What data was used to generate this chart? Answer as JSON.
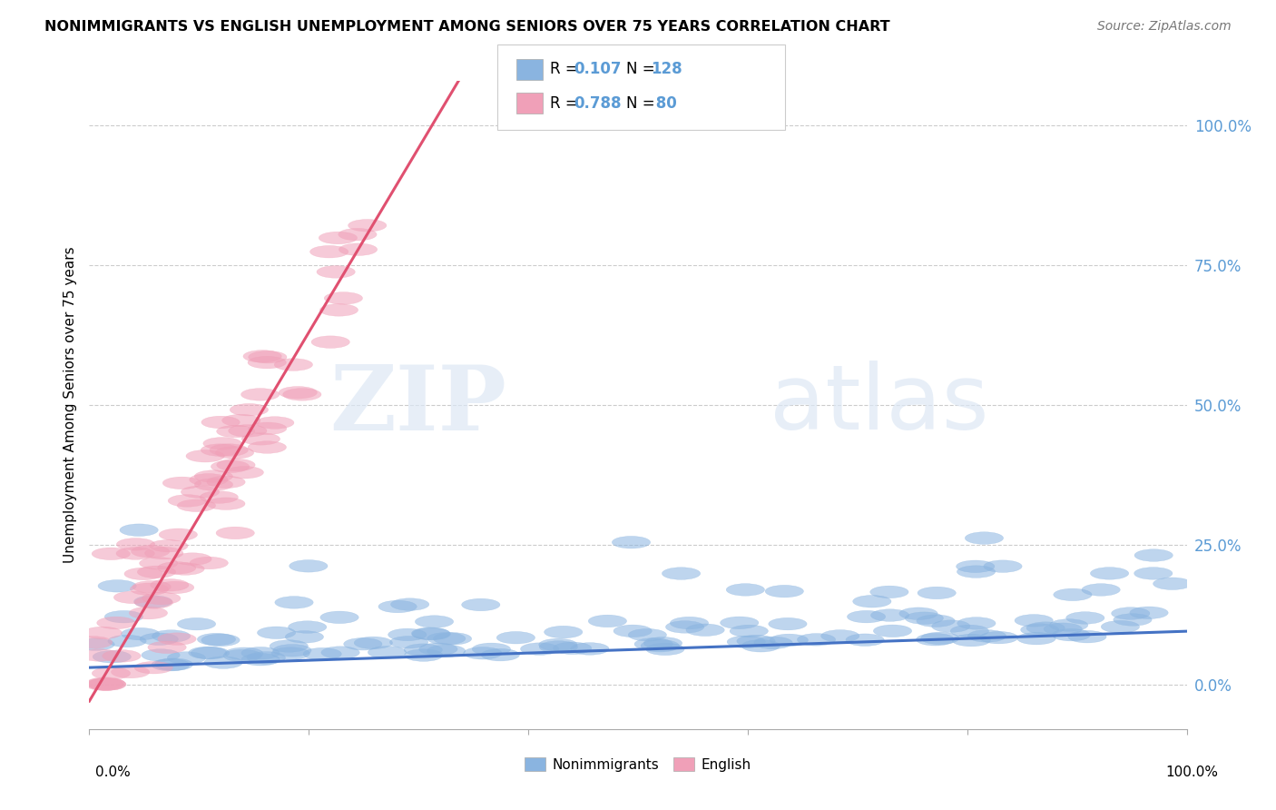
{
  "title": "NONIMMIGRANTS VS ENGLISH UNEMPLOYMENT AMONG SENIORS OVER 75 YEARS CORRELATION CHART",
  "source": "Source: ZipAtlas.com",
  "ylabel": "Unemployment Among Seniors over 75 years",
  "legend_blue_r": "R = 0.107",
  "legend_blue_n": "N = 128",
  "legend_pink_r": "R = 0.788",
  "legend_pink_n": "N =  80",
  "blue_color": "#8ab4e0",
  "pink_color": "#f0a0b8",
  "blue_line_color": "#4472c4",
  "pink_line_color": "#e05070",
  "watermark_zip": "ZIP",
  "watermark_atlas": "atlas",
  "seed": 42
}
